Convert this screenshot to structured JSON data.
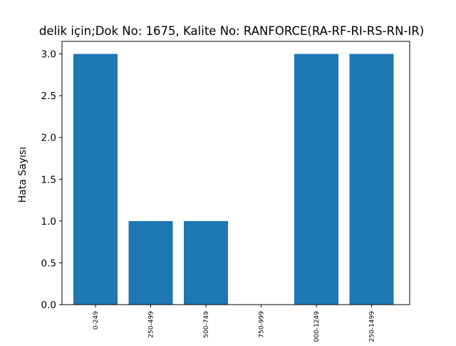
{
  "chart_data": {
    "type": "bar",
    "title": "delik için;Dok No: 1675, Kalite No: RANFORCE(RA-RF-RI-RS-RN-IR)",
    "xlabel": "",
    "ylabel": "Hata Sayısı",
    "categories": [
      "0-249",
      "250-499",
      "500-749",
      "750-999",
      "1000-1249",
      "1250-1499"
    ],
    "values": [
      3,
      1,
      1,
      0,
      3,
      3
    ],
    "ylim": [
      0,
      3.15
    ],
    "yticks": [
      "0.0",
      "0.5",
      "1.0",
      "1.5",
      "2.0",
      "2.5",
      "3.0"
    ],
    "grid": false,
    "legend": "none",
    "colors": {
      "bar": "#1f77b4",
      "axis": "#000000",
      "background": "#ffffff"
    }
  }
}
